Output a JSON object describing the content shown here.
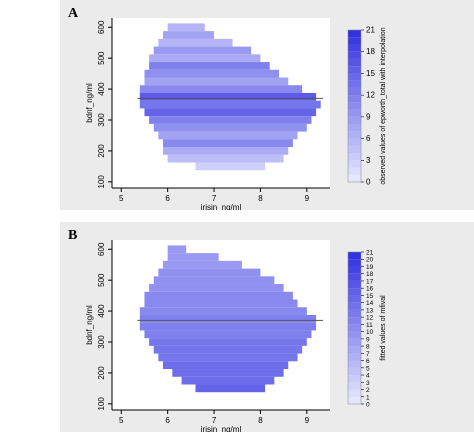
{
  "figure": {
    "panels": [
      {
        "label": "A"
      },
      {
        "label": "B"
      }
    ]
  },
  "chart_data": [
    {
      "type": "heatmap",
      "panel": "A",
      "title": "",
      "xlabel": "irisin_ng/ml",
      "ylabel": "bdnf_ng/ml",
      "xlim": [
        4.8,
        9.5
      ],
      "ylim": [
        80,
        630
      ],
      "xticks": [
        5,
        6,
        7,
        8,
        9
      ],
      "yticks": [
        100,
        200,
        300,
        400,
        500,
        600
      ],
      "reference_line_y": 370,
      "colorbar": {
        "label": "observed values of epworth_total with interpolation",
        "min": 0,
        "max": 21,
        "ticks": [
          0,
          3,
          6,
          9,
          12,
          15,
          18,
          21
        ],
        "colors": [
          "#eaeaff",
          "#2e2ee0"
        ]
      },
      "bands": [
        {
          "y": 600,
          "x": [
            6.0,
            6.8
          ],
          "value": 6
        },
        {
          "y": 575,
          "x": [
            5.9,
            7.0
          ],
          "value": 8
        },
        {
          "y": 550,
          "x": [
            5.8,
            7.4
          ],
          "value": 6
        },
        {
          "y": 525,
          "x": [
            5.7,
            7.8
          ],
          "value": 9
        },
        {
          "y": 500,
          "x": [
            5.6,
            8.0
          ],
          "value": 7
        },
        {
          "y": 475,
          "x": [
            5.6,
            8.2
          ],
          "value": 12
        },
        {
          "y": 450,
          "x": [
            5.5,
            8.4
          ],
          "value": 10
        },
        {
          "y": 425,
          "x": [
            5.5,
            8.6
          ],
          "value": 8
        },
        {
          "y": 400,
          "x": [
            5.4,
            8.9
          ],
          "value": 11
        },
        {
          "y": 375,
          "x": [
            5.4,
            9.2
          ],
          "value": 16
        },
        {
          "y": 350,
          "x": [
            5.4,
            9.3
          ],
          "value": 13
        },
        {
          "y": 325,
          "x": [
            5.5,
            9.2
          ],
          "value": 15
        },
        {
          "y": 300,
          "x": [
            5.6,
            9.1
          ],
          "value": 12
        },
        {
          "y": 275,
          "x": [
            5.7,
            9.0
          ],
          "value": 10
        },
        {
          "y": 250,
          "x": [
            5.8,
            8.8
          ],
          "value": 8
        },
        {
          "y": 225,
          "x": [
            5.9,
            8.7
          ],
          "value": 11
        },
        {
          "y": 200,
          "x": [
            5.9,
            8.6
          ],
          "value": 7
        },
        {
          "y": 175,
          "x": [
            6.0,
            8.5
          ],
          "value": 5
        },
        {
          "y": 150,
          "x": [
            6.6,
            8.1
          ],
          "value": 3
        }
      ]
    },
    {
      "type": "heatmap",
      "panel": "B",
      "title": "",
      "xlabel": "irisin_ng/ml",
      "ylabel": "bdnf_ng/ml",
      "xlim": [
        4.8,
        9.5
      ],
      "ylim": [
        80,
        630
      ],
      "xticks": [
        5,
        6,
        7,
        8,
        9
      ],
      "yticks": [
        100,
        200,
        300,
        400,
        500,
        600
      ],
      "reference_line_y": 370,
      "colorbar": {
        "label": "fitted values of mfival",
        "min": 0,
        "max": 21,
        "ticks": [
          0,
          1,
          2,
          3,
          4,
          5,
          6,
          7,
          8,
          9,
          10,
          11,
          12,
          13,
          14,
          15,
          16,
          17,
          18,
          19,
          20,
          21
        ],
        "colors": [
          "#eaeaff",
          "#2e2ee0"
        ]
      },
      "bands": [
        {
          "y": 600,
          "x": [
            6.0,
            6.4
          ],
          "value": 9
        },
        {
          "y": 575,
          "x": [
            6.0,
            7.1
          ],
          "value": 9
        },
        {
          "y": 550,
          "x": [
            5.9,
            7.6
          ],
          "value": 9
        },
        {
          "y": 525,
          "x": [
            5.8,
            8.0
          ],
          "value": 10
        },
        {
          "y": 500,
          "x": [
            5.7,
            8.3
          ],
          "value": 10
        },
        {
          "y": 475,
          "x": [
            5.6,
            8.5
          ],
          "value": 10
        },
        {
          "y": 450,
          "x": [
            5.5,
            8.7
          ],
          "value": 11
        },
        {
          "y": 425,
          "x": [
            5.5,
            8.8
          ],
          "value": 11
        },
        {
          "y": 400,
          "x": [
            5.4,
            9.0
          ],
          "value": 11
        },
        {
          "y": 375,
          "x": [
            5.4,
            9.2
          ],
          "value": 12
        },
        {
          "y": 350,
          "x": [
            5.4,
            9.2
          ],
          "value": 12
        },
        {
          "y": 325,
          "x": [
            5.5,
            9.1
          ],
          "value": 12
        },
        {
          "y": 300,
          "x": [
            5.6,
            9.0
          ],
          "value": 13
        },
        {
          "y": 275,
          "x": [
            5.7,
            8.9
          ],
          "value": 13
        },
        {
          "y": 250,
          "x": [
            5.8,
            8.8
          ],
          "value": 13
        },
        {
          "y": 225,
          "x": [
            5.9,
            8.6
          ],
          "value": 14
        },
        {
          "y": 200,
          "x": [
            6.1,
            8.5
          ],
          "value": 14
        },
        {
          "y": 175,
          "x": [
            6.3,
            8.3
          ],
          "value": 14
        },
        {
          "y": 150,
          "x": [
            6.6,
            8.1
          ],
          "value": 15
        }
      ]
    }
  ]
}
